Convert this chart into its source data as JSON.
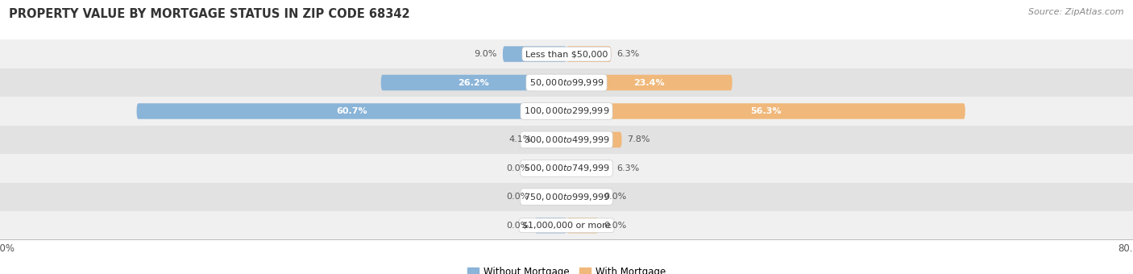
{
  "title": "PROPERTY VALUE BY MORTGAGE STATUS IN ZIP CODE 68342",
  "source": "Source: ZipAtlas.com",
  "categories": [
    "Less than $50,000",
    "$50,000 to $99,999",
    "$100,000 to $299,999",
    "$300,000 to $499,999",
    "$500,000 to $749,999",
    "$750,000 to $999,999",
    "$1,000,000 or more"
  ],
  "without_mortgage": [
    9.0,
    26.2,
    60.7,
    4.1,
    0.0,
    0.0,
    0.0
  ],
  "with_mortgage": [
    6.3,
    23.4,
    56.3,
    7.8,
    6.3,
    0.0,
    0.0
  ],
  "bar_color_blue": "#8ab4d8",
  "bar_color_orange": "#f0b87a",
  "bg_color_row_light": "#f0f0f0",
  "bg_color_row_dark": "#e2e2e2",
  "label_color_dark": "#555555",
  "label_color_white": "#ffffff",
  "xlim": [
    -80,
    80
  ],
  "legend_labels": [
    "Without Mortgage",
    "With Mortgage"
  ],
  "title_fontsize": 10.5,
  "source_fontsize": 8,
  "label_fontsize": 8,
  "category_fontsize": 8,
  "bar_height": 0.55,
  "white_label_threshold": 12,
  "stub_bar_size": 4.5
}
